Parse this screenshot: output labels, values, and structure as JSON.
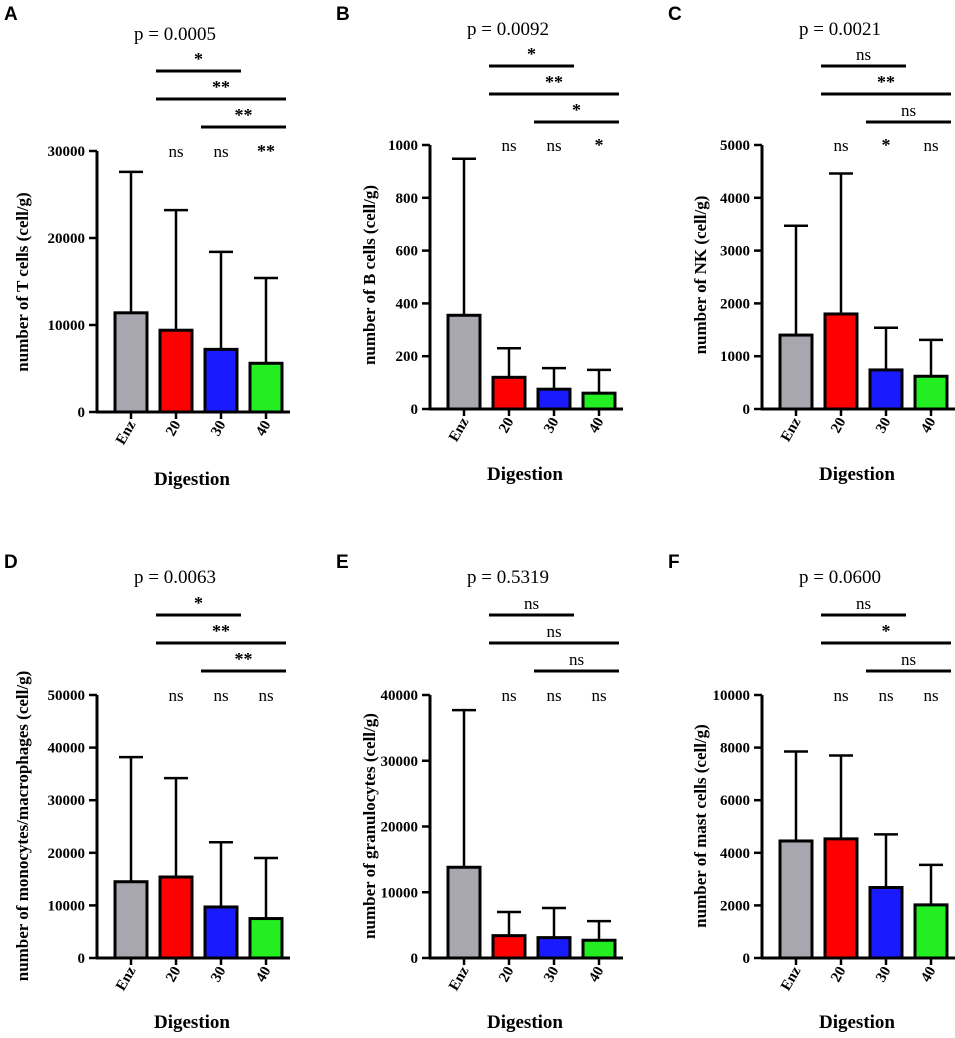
{
  "chart_data": [
    {
      "type": "bar",
      "panel": "A",
      "p_value": "p = 0.0005",
      "categories": [
        "Enz",
        "20",
        "30",
        "40"
      ],
      "values": [
        11400,
        9400,
        7200,
        5600
      ],
      "errors_upper": [
        27600,
        23200,
        18400,
        15400
      ],
      "ylabel": "number of T cells (cell/g)",
      "xlabel": "Digestion",
      "ylim": [
        0,
        30000
      ],
      "yticks": [
        "0",
        "10000",
        "20000",
        "30000"
      ],
      "bar_colors": [
        "#a8a6ae",
        "#ff0000",
        "#1a1aff",
        "#22ee22"
      ],
      "above_bar_labels": [
        "",
        "ns",
        "ns",
        "**"
      ],
      "brackets": [
        {
          "from": 1,
          "to": 2,
          "label": "*"
        },
        {
          "from": 1,
          "to": 3,
          "label": "**"
        },
        {
          "from": 2,
          "to": 3,
          "label": "**"
        }
      ]
    },
    {
      "type": "bar",
      "panel": "B",
      "p_value": "p = 0.0092",
      "categories": [
        "Enz",
        "20",
        "30",
        "40"
      ],
      "values": [
        355,
        120,
        75,
        60
      ],
      "errors_upper": [
        948,
        230,
        155,
        148
      ],
      "ylabel": "number of B cells (cell/g)",
      "xlabel": "Digestion",
      "ylim": [
        0,
        1000
      ],
      "yticks": [
        "0",
        "200",
        "400",
        "600",
        "800",
        "1000"
      ],
      "bar_colors": [
        "#a8a6ae",
        "#ff0000",
        "#1a1aff",
        "#22ee22"
      ],
      "above_bar_labels": [
        "",
        "ns",
        "ns",
        "*"
      ],
      "brackets": [
        {
          "from": 1,
          "to": 2,
          "label": "*"
        },
        {
          "from": 1,
          "to": 3,
          "label": "**"
        },
        {
          "from": 2,
          "to": 3,
          "label": "*"
        }
      ]
    },
    {
      "type": "bar",
      "panel": "C",
      "p_value": "p = 0.0021",
      "categories": [
        "Enz",
        "20",
        "30",
        "40"
      ],
      "values": [
        1400,
        1800,
        740,
        620
      ],
      "errors_upper": [
        3470,
        4460,
        1540,
        1310
      ],
      "ylabel": "number of NK (cell/g)",
      "xlabel": "Digestion",
      "ylim": [
        0,
        5000
      ],
      "yticks": [
        "0",
        "1000",
        "2000",
        "3000",
        "4000",
        "5000"
      ],
      "bar_colors": [
        "#a8a6ae",
        "#ff0000",
        "#1a1aff",
        "#22ee22"
      ],
      "above_bar_labels": [
        "",
        "ns",
        "*",
        "ns"
      ],
      "brackets": [
        {
          "from": 1,
          "to": 2,
          "label": "ns"
        },
        {
          "from": 1,
          "to": 3,
          "label": "**"
        },
        {
          "from": 2,
          "to": 3,
          "label": "ns"
        }
      ]
    },
    {
      "type": "bar",
      "panel": "D",
      "p_value": "p = 0.0063",
      "categories": [
        "Enz",
        "20",
        "30",
        "40"
      ],
      "values": [
        14500,
        15400,
        9700,
        7500
      ],
      "errors_upper": [
        38200,
        34200,
        22000,
        19000
      ],
      "ylabel": "number of monocytes/macrophages (cell/g)",
      "xlabel": "Digestion",
      "ylim": [
        0,
        50000
      ],
      "yticks": [
        "0",
        "10000",
        "20000",
        "30000",
        "40000",
        "50000"
      ],
      "bar_colors": [
        "#a8a6ae",
        "#ff0000",
        "#1a1aff",
        "#22ee22"
      ],
      "above_bar_labels": [
        "",
        "ns",
        "ns",
        "ns"
      ],
      "brackets": [
        {
          "from": 1,
          "to": 2,
          "label": "*"
        },
        {
          "from": 1,
          "to": 3,
          "label": "**"
        },
        {
          "from": 2,
          "to": 3,
          "label": "**"
        }
      ]
    },
    {
      "type": "bar",
      "panel": "E",
      "p_value": "p = 0.5319",
      "categories": [
        "Enz",
        "20",
        "30",
        "40"
      ],
      "values": [
        13800,
        3400,
        3100,
        2700
      ],
      "errors_upper": [
        37700,
        7000,
        7600,
        5600
      ],
      "ylabel": "number of granulocytes (cell/g)",
      "xlabel": "Digestion",
      "ylim": [
        0,
        40000
      ],
      "yticks": [
        "0",
        "10000",
        "20000",
        "30000",
        "40000"
      ],
      "bar_colors": [
        "#a8a6ae",
        "#ff0000",
        "#1a1aff",
        "#22ee22"
      ],
      "above_bar_labels": [
        "",
        "ns",
        "ns",
        "ns"
      ],
      "brackets": [
        {
          "from": 1,
          "to": 2,
          "label": "ns"
        },
        {
          "from": 1,
          "to": 3,
          "label": "ns"
        },
        {
          "from": 2,
          "to": 3,
          "label": "ns"
        }
      ]
    },
    {
      "type": "bar",
      "panel": "F",
      "p_value": "p = 0.0600",
      "categories": [
        "Enz",
        "20",
        "30",
        "40"
      ],
      "values": [
        4450,
        4530,
        2680,
        2020
      ],
      "errors_upper": [
        7850,
        7700,
        4700,
        3540
      ],
      "ylabel": "number of mast cells (cell/g)",
      "xlabel": "Digestion",
      "ylim": [
        0,
        10000
      ],
      "yticks": [
        "0",
        "2000",
        "4000",
        "6000",
        "8000",
        "10000"
      ],
      "bar_colors": [
        "#a8a6ae",
        "#ff0000",
        "#1a1aff",
        "#22ee22"
      ],
      "above_bar_labels": [
        "",
        "ns",
        "ns",
        "ns"
      ],
      "brackets": [
        {
          "from": 1,
          "to": 2,
          "label": "ns"
        },
        {
          "from": 1,
          "to": 3,
          "label": "*"
        },
        {
          "from": 2,
          "to": 3,
          "label": "ns"
        }
      ]
    }
  ]
}
